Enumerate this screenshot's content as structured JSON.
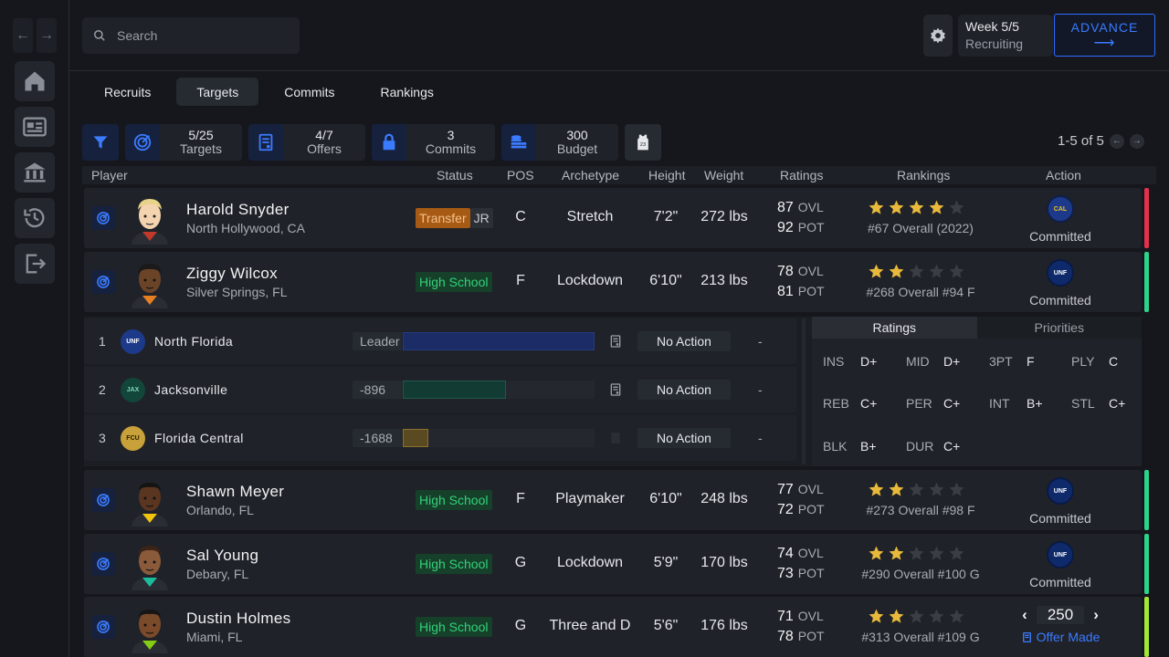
{
  "search": {
    "placeholder": "Search"
  },
  "header": {
    "week": "Week 5/5",
    "phase": "Recruiting",
    "advance_label": "ADVANCE",
    "advance_arrow": "⟶"
  },
  "tabs": [
    {
      "label": "Recruits"
    },
    {
      "label": "Targets",
      "active": true
    },
    {
      "label": "Commits"
    },
    {
      "label": "Rankings"
    }
  ],
  "stats": {
    "targets": {
      "value": "5/25",
      "label": "Targets"
    },
    "offers": {
      "value": "4/7",
      "label": "Offers"
    },
    "commits": {
      "value": "3",
      "label": "Commits"
    },
    "budget": {
      "value": "300",
      "label": "Budget"
    }
  },
  "pager": {
    "text": "1-5 of 5"
  },
  "columns": {
    "player": "Player",
    "status": "Status",
    "pos": "POS",
    "archetype": "Archetype",
    "height": "Height",
    "weight": "Weight",
    "ratings": "Ratings",
    "rankings": "Rankings",
    "action": "Action"
  },
  "labels": {
    "ovl": "OVL",
    "pot": "POT",
    "committed": "Committed"
  },
  "players": [
    {
      "name": "Harold Snyder",
      "location": "North Hollywood, CA",
      "status": "Transfer",
      "year": "JR",
      "pos": "C",
      "archetype": "Stretch",
      "height": "7'2\"",
      "weight": "272 lbs",
      "ovl": "87",
      "pot": "92",
      "stars": 4,
      "rank": "#67 Overall (2022)",
      "action_team": "CAL",
      "action": "Committed",
      "stripe": "#e5304d"
    },
    {
      "name": "Ziggy Wilcox",
      "location": "Silver Springs, FL",
      "status": "High School",
      "pos": "F",
      "archetype": "Lockdown",
      "height": "6'10\"",
      "weight": "213 lbs",
      "ovl": "78",
      "pot": "81",
      "stars": 2,
      "rank": "#268 Overall   #94 F",
      "action_team": "UNF",
      "action": "Committed",
      "stripe": "#2ed38a"
    },
    {
      "name": "Shawn Meyer",
      "location": "Orlando, FL",
      "status": "High School",
      "pos": "F",
      "archetype": "Playmaker",
      "height": "6'10\"",
      "weight": "248 lbs",
      "ovl": "77",
      "pot": "72",
      "stars": 2,
      "rank": "#273 Overall   #98 F",
      "action_team": "UNF",
      "action": "Committed",
      "stripe": "#2ed38a"
    },
    {
      "name": "Sal Young",
      "location": "Debary, FL",
      "status": "High School",
      "pos": "G",
      "archetype": "Lockdown",
      "height": "5'9\"",
      "weight": "170 lbs",
      "ovl": "74",
      "pot": "73",
      "stars": 2,
      "rank": "#290 Overall   #100 G",
      "action_team": "UNF",
      "action": "Committed",
      "stripe": "#2ed38a"
    },
    {
      "name": "Dustin Holmes",
      "location": "Miami, FL",
      "status": "High School",
      "pos": "G",
      "archetype": "Three and D",
      "height": "5'6\"",
      "weight": "176 lbs",
      "ovl": "71",
      "pot": "78",
      "stars": 2,
      "rank": "#313 Overall   #109 G",
      "offer_amount": "250",
      "offer_status": "Offer Made",
      "stripe": "#a3e635"
    }
  ],
  "interest": [
    {
      "rank": "1",
      "abbr": "UNF",
      "team": "North Florida",
      "points": "Leader",
      "fill": 1.0,
      "action": "No Action",
      "dash": "-",
      "color": "#1d3a8a",
      "text": "#ffffff"
    },
    {
      "rank": "2",
      "abbr": "JAX",
      "team": "Jacksonville",
      "points": "-896",
      "fill": 0.54,
      "action": "No Action",
      "dash": "-",
      "color": "#12463b",
      "text": "#7fd6b8"
    },
    {
      "rank": "3",
      "abbr": "FCU",
      "team": "Florida Central",
      "points": "-1688",
      "fill": 0.13,
      "action": "No Action",
      "dash": "-",
      "color": "#c9a13a",
      "text": "#2a2000"
    }
  ],
  "detail_tabs": {
    "ratings": "Ratings",
    "priorities": "Priorities"
  },
  "attributes": [
    {
      "k": "INS",
      "v": "D+"
    },
    {
      "k": "MID",
      "v": "D+"
    },
    {
      "k": "3PT",
      "v": "F"
    },
    {
      "k": "PLY",
      "v": "C"
    },
    {
      "k": "REB",
      "v": "C+"
    },
    {
      "k": "PER",
      "v": "C+"
    },
    {
      "k": "INT",
      "v": "B+"
    },
    {
      "k": "STL",
      "v": "C+"
    },
    {
      "k": "BLK",
      "v": "B+"
    },
    {
      "k": "DUR",
      "v": "C+"
    }
  ]
}
